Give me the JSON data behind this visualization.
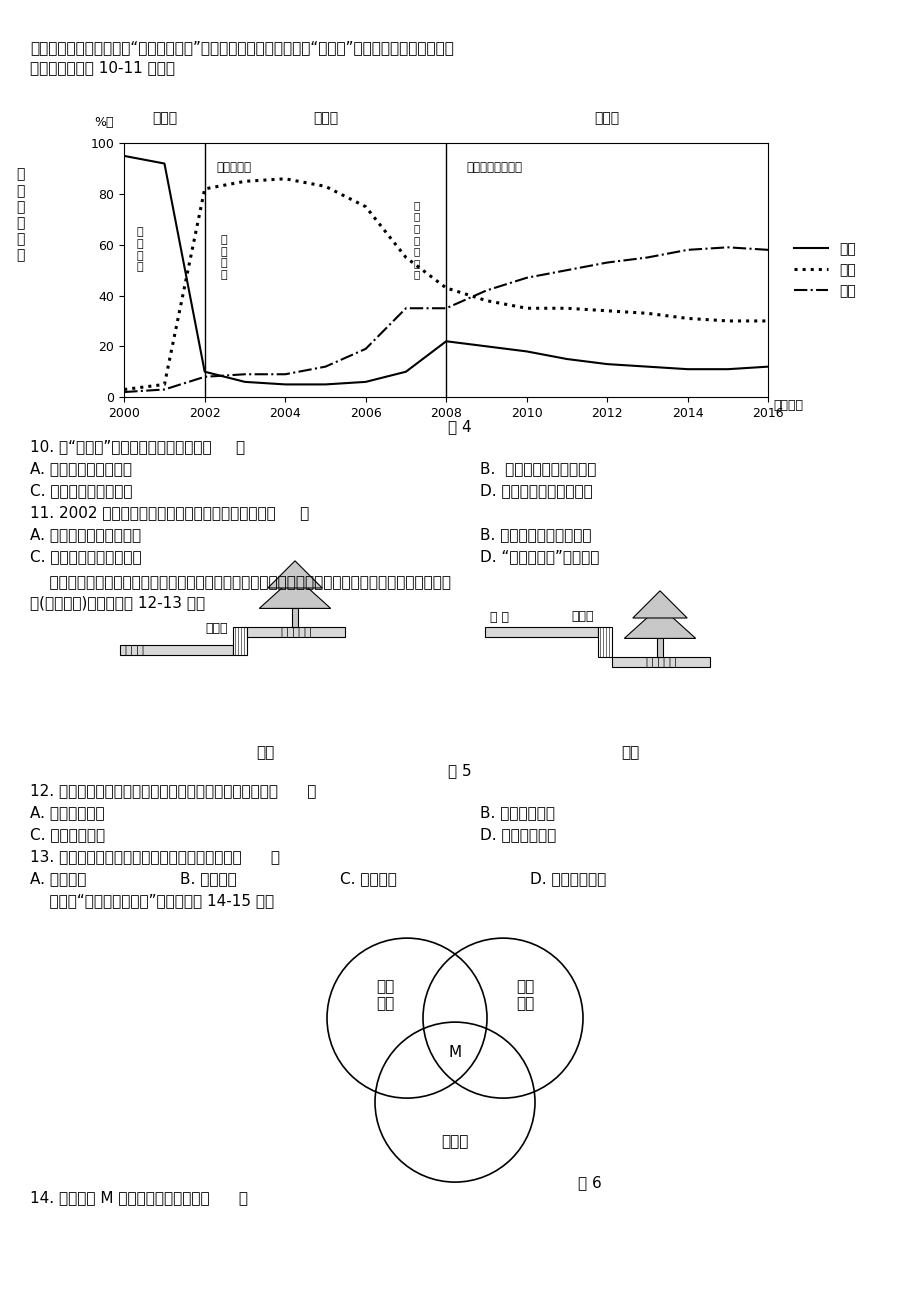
{
  "page_bg": "#ffffff",
  "intro_text_1": "体所有制的村庄，亦称为“都市里的村庄”。下图示意某工业集中区的“城中村”形成过程中村民就业构成",
  "intro_text_2": "变化。据此完成 10-11 小题。",
  "chart": {
    "title_phase1": "阶段一",
    "title_phase2": "阶段二",
    "title_phase3": "阶段三",
    "label_industry_build": "工业区建设",
    "label_city_stable": "城市建设相对平稳",
    "ylabel_unit": "%）",
    "xlabel": "（年份）",
    "caption": "图 4",
    "years": [
      2000,
      2002,
      2004,
      2006,
      2008,
      2010,
      2012,
      2014,
      2016
    ],
    "agriculture_x": [
      2000,
      2001,
      2002,
      2003,
      2004,
      2005,
      2006,
      2007,
      2008,
      2009,
      2010,
      2011,
      2012,
      2013,
      2014,
      2015,
      2016
    ],
    "agriculture_y": [
      95,
      92,
      10,
      6,
      5,
      5,
      6,
      10,
      22,
      20,
      18,
      15,
      13,
      12,
      11,
      11,
      12
    ],
    "industry_x": [
      2000,
      2001,
      2002,
      2003,
      2004,
      2005,
      2006,
      2007,
      2008,
      2009,
      2010,
      2011,
      2012,
      2013,
      2014,
      2015,
      2016
    ],
    "industry_y": [
      3,
      5,
      82,
      85,
      86,
      83,
      75,
      55,
      43,
      38,
      35,
      35,
      34,
      33,
      31,
      30,
      30
    ],
    "commerce_x": [
      2000,
      2001,
      2002,
      2003,
      2004,
      2005,
      2006,
      2007,
      2008,
      2009,
      2010,
      2011,
      2012,
      2013,
      2014,
      2015,
      2016
    ],
    "commerce_y": [
      2,
      3,
      8,
      9,
      9,
      12,
      19,
      35,
      35,
      42,
      47,
      50,
      53,
      55,
      58,
      59,
      58
    ],
    "legend_agr": "农业",
    "legend_ind": "工业",
    "legend_com": "商业"
  },
  "q10_text": "10. 该“城中村”居民就业方式的变化是（     ）",
  "q10_A": "A. 农民全部转化为工人",
  "q10_B": "B.  建筑工人比重不断上升",
  "q10_C": "C. 体力劳动者比重增加",
  "q10_D": "D. 从事商业活动人数增加",
  "q11_text": "11. 2002 年后，该地区城市化的发展过程总体处在（     ）",
  "q11_A": "A. 已经进入逆城市化阶段",
  "q11_B": "B. 城市郊区化的发展阶段",
  "q11_C": "C. 城市化发展的加速阶段",
  "q11_D": "D. “虚假城市化”发展阶段",
  "fig5_intro_1": "    下面图甲示意我国大部分城市道路两侧绿化种植池现状，针对当前的城市问题有环保学者提出设计建",
  "fig5_intro_2": "议(图乙所示)。读图完成 12-13 题。",
  "fig5_caption": "图 5",
  "fig5_jia_label": "图甲",
  "fig5_yi_label": "图乙",
  "q12_text": "12. 图甲中路缘石与种植池这样设计的主要原因最可能为（      ）",
  "q12_A": "A. 阻挡雨水杂物",
  "q12_B": "B. 美化城市环境",
  "q12_C": "C. 防止人为践踏",
  "q12_D": "D. 减少建设成本",
  "q13_text": "13. 环保学者提出的设计建议主要解决的是城市（      ）",
  "q13_A": "A. 热岛问题",
  "q13_B": "B. 内涝问题",
  "q13_C": "C. 拥堵问题",
  "q13_D": "D. 大气污染问题",
  "fig6_intro": "    如图为“农业类型示意图”。读图回答 14-15 题。",
  "fig6_caption": "图 6",
  "fig6_circle1": "密集\n农业",
  "fig6_circle2": "自给\n农业",
  "fig6_circle3": "种植业",
  "fig6_M": "M",
  "q14_text": "14. 符合图中 M 处农业地域类型的是（      ）"
}
